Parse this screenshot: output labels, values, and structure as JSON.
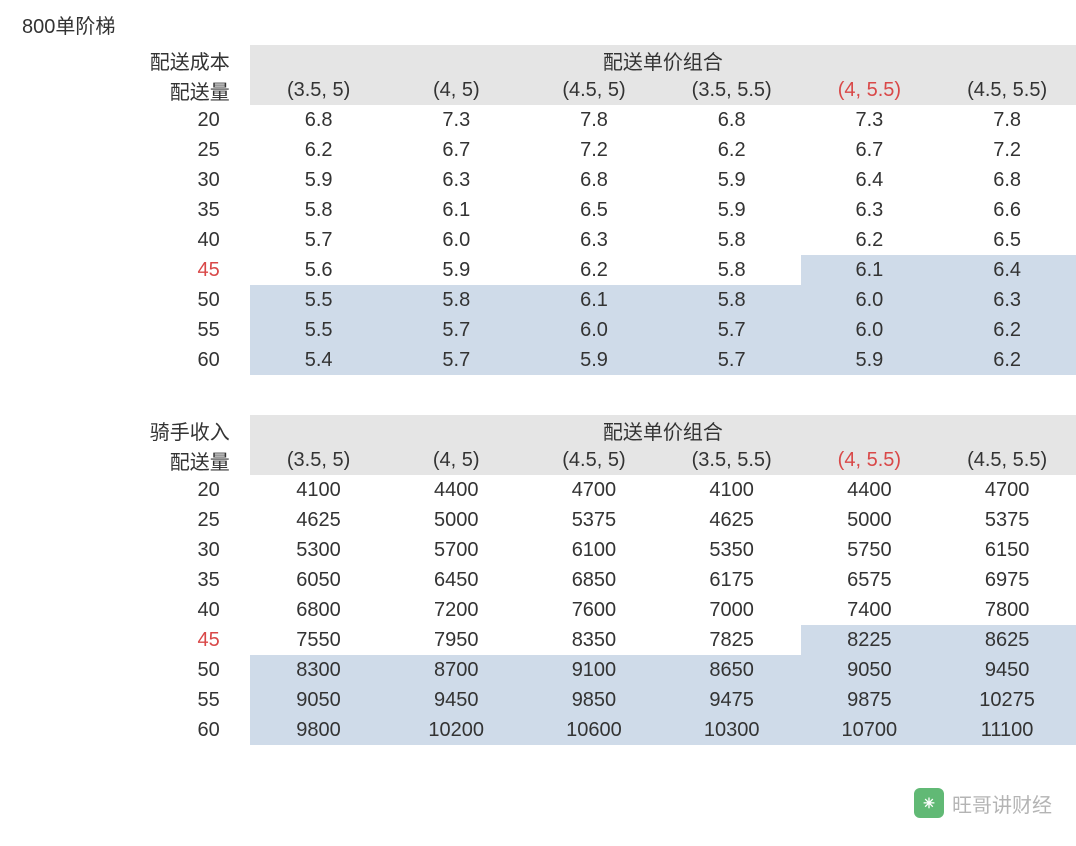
{
  "title": "800单阶梯",
  "watermark": {
    "text": "旺哥讲财经"
  },
  "colors": {
    "text": "#333333",
    "header_bg": "#e5e5e5",
    "highlight_bg": "#cfdbe9",
    "red_text": "#d94848",
    "background": "#ffffff",
    "watermark_text": "#a0a0a0"
  },
  "typography": {
    "font_size_pt": 15,
    "font_family": "Arial"
  },
  "columns": {
    "super_header": "配送单价组合",
    "labels": [
      "(3.5, 5)",
      "(4, 5)",
      "(4.5, 5)",
      "(3.5, 5.5)",
      "(4, 5.5)",
      "(4.5, 5.5)"
    ],
    "highlighted_index": 4
  },
  "table1": {
    "type": "table",
    "corner1": "配送成本",
    "corner2": "配送量",
    "row_labels": [
      "20",
      "25",
      "30",
      "35",
      "40",
      "45",
      "50",
      "55",
      "60"
    ],
    "highlighted_row_index": 5,
    "rows": [
      [
        "6.8",
        "7.3",
        "7.8",
        "6.8",
        "7.3",
        "7.8"
      ],
      [
        "6.2",
        "6.7",
        "7.2",
        "6.2",
        "6.7",
        "7.2"
      ],
      [
        "5.9",
        "6.3",
        "6.8",
        "5.9",
        "6.4",
        "6.8"
      ],
      [
        "5.8",
        "6.1",
        "6.5",
        "5.9",
        "6.3",
        "6.6"
      ],
      [
        "5.7",
        "6.0",
        "6.3",
        "5.8",
        "6.2",
        "6.5"
      ],
      [
        "5.6",
        "5.9",
        "6.2",
        "5.8",
        "6.1",
        "6.4"
      ],
      [
        "5.5",
        "5.8",
        "6.1",
        "5.8",
        "6.0",
        "6.3"
      ],
      [
        "5.5",
        "5.7",
        "6.0",
        "5.7",
        "6.0",
        "6.2"
      ],
      [
        "5.4",
        "5.7",
        "5.9",
        "5.7",
        "5.9",
        "6.2"
      ]
    ],
    "highlight_cells": [
      [
        5,
        4
      ],
      [
        5,
        5
      ],
      [
        6,
        0
      ],
      [
        6,
        1
      ],
      [
        6,
        2
      ],
      [
        6,
        3
      ],
      [
        6,
        4
      ],
      [
        6,
        5
      ],
      [
        7,
        0
      ],
      [
        7,
        1
      ],
      [
        7,
        2
      ],
      [
        7,
        3
      ],
      [
        7,
        4
      ],
      [
        7,
        5
      ],
      [
        8,
        0
      ],
      [
        8,
        1
      ],
      [
        8,
        2
      ],
      [
        8,
        3
      ],
      [
        8,
        4
      ],
      [
        8,
        5
      ]
    ]
  },
  "table2": {
    "type": "table",
    "corner1": "骑手收入",
    "corner2": "配送量",
    "row_labels": [
      "20",
      "25",
      "30",
      "35",
      "40",
      "45",
      "50",
      "55",
      "60"
    ],
    "highlighted_row_index": 5,
    "rows": [
      [
        "4100",
        "4400",
        "4700",
        "4100",
        "4400",
        "4700"
      ],
      [
        "4625",
        "5000",
        "5375",
        "4625",
        "5000",
        "5375"
      ],
      [
        "5300",
        "5700",
        "6100",
        "5350",
        "5750",
        "6150"
      ],
      [
        "6050",
        "6450",
        "6850",
        "6175",
        "6575",
        "6975"
      ],
      [
        "6800",
        "7200",
        "7600",
        "7000",
        "7400",
        "7800"
      ],
      [
        "7550",
        "7950",
        "8350",
        "7825",
        "8225",
        "8625"
      ],
      [
        "8300",
        "8700",
        "9100",
        "8650",
        "9050",
        "9450"
      ],
      [
        "9050",
        "9450",
        "9850",
        "9475",
        "9875",
        "10275"
      ],
      [
        "9800",
        "10200",
        "10600",
        "10300",
        "10700",
        "11100"
      ]
    ],
    "highlight_cells": [
      [
        5,
        4
      ],
      [
        5,
        5
      ],
      [
        6,
        0
      ],
      [
        6,
        1
      ],
      [
        6,
        2
      ],
      [
        6,
        3
      ],
      [
        6,
        4
      ],
      [
        6,
        5
      ],
      [
        7,
        0
      ],
      [
        7,
        1
      ],
      [
        7,
        2
      ],
      [
        7,
        3
      ],
      [
        7,
        4
      ],
      [
        7,
        5
      ],
      [
        8,
        0
      ],
      [
        8,
        1
      ],
      [
        8,
        2
      ],
      [
        8,
        3
      ],
      [
        8,
        4
      ],
      [
        8,
        5
      ]
    ]
  }
}
